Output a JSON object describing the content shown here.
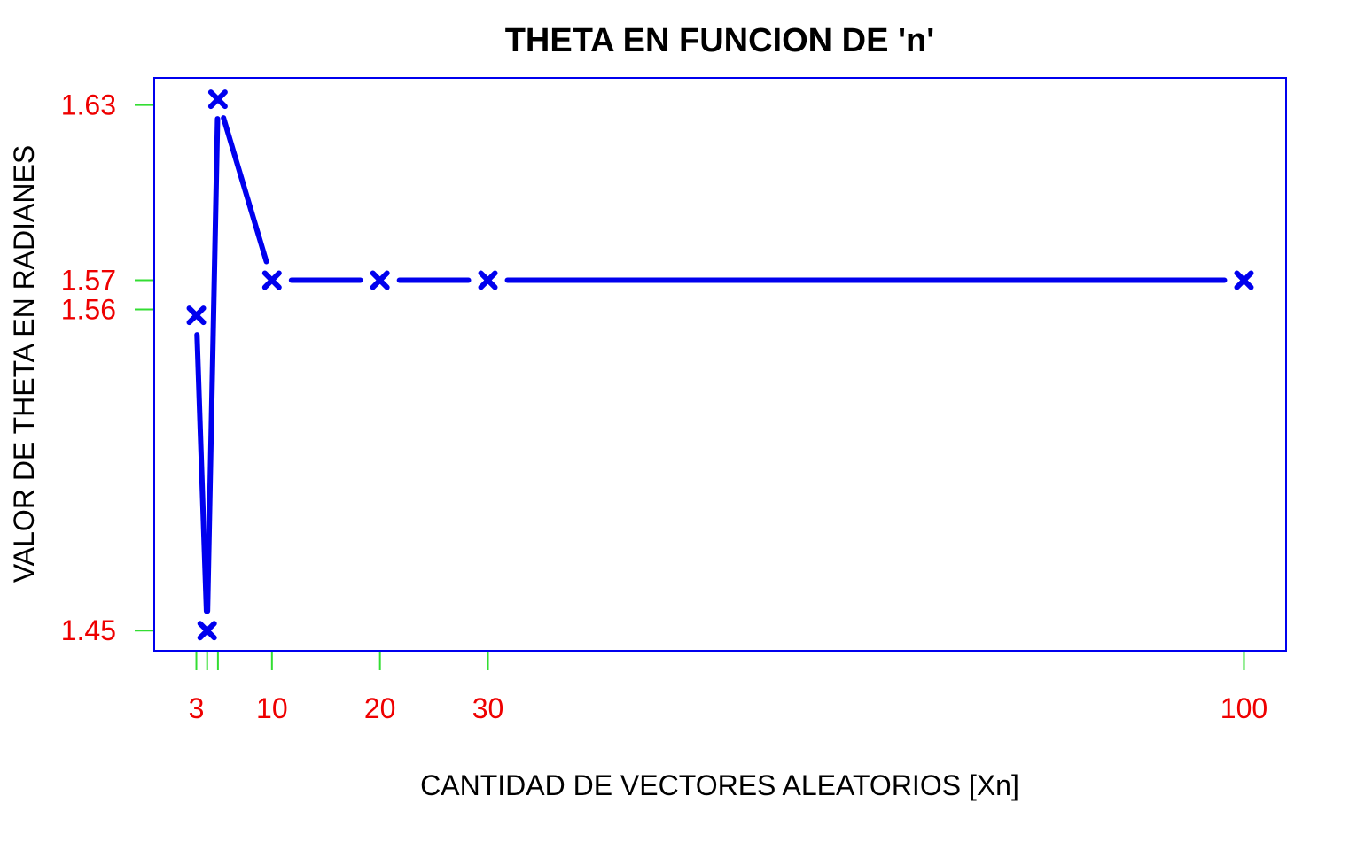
{
  "chart_data": {
    "type": "line",
    "title": "THETA EN FUNCION DE 'n'",
    "xlabel": "CANTIDAD DE VECTORES ALEATORIOS [Xn]",
    "ylabel": "VALOR DE THETA EN RADIANES",
    "x": [
      3,
      4,
      5,
      10,
      20,
      30,
      100
    ],
    "y": [
      1.558,
      1.45,
      1.632,
      1.57,
      1.57,
      1.57,
      1.57
    ],
    "x_ticks": [
      3,
      4,
      5,
      10,
      20,
      30,
      100
    ],
    "x_tick_labels": [
      "3",
      "",
      "",
      "10",
      "20",
      "30",
      "100"
    ],
    "y_ticks": [
      1.45,
      1.56,
      1.57,
      1.63
    ],
    "y_tick_labels": [
      "1.45",
      "1.56",
      "1.57",
      "1.63"
    ],
    "xlim": [
      -0.9,
      103.9
    ],
    "ylim": [
      1.4431,
      1.6393
    ],
    "grid": false,
    "legend": "none",
    "marker": "x",
    "colors": {
      "series": "#0000ee",
      "frame": "#0000ee",
      "ticks": "#33dd33",
      "tick_labels": "#ee0000",
      "text": "#000000"
    }
  }
}
